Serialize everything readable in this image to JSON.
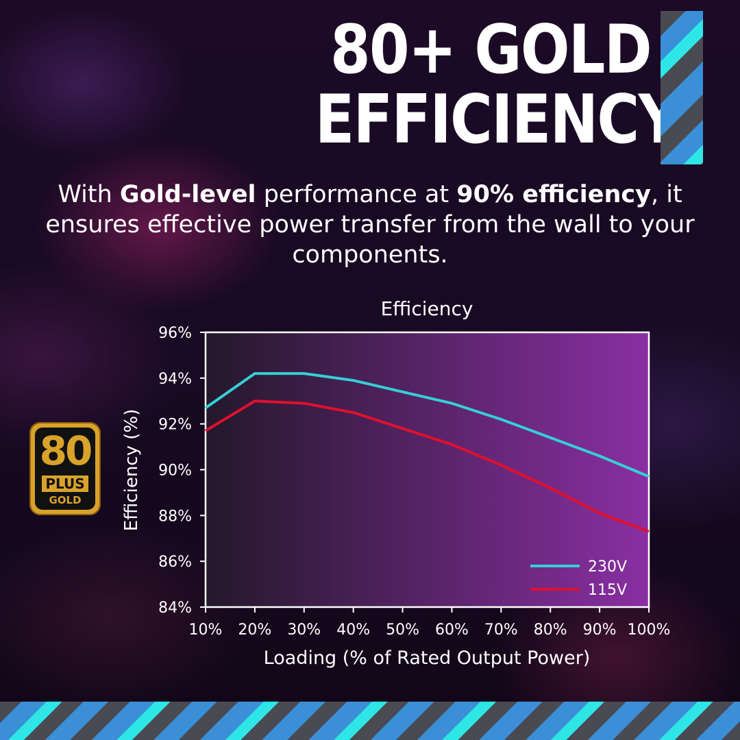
{
  "headline": {
    "line1": "80+ GOLD",
    "line2": "EFFICIENCY"
  },
  "intro": {
    "p1": "With ",
    "b1": "Gold-level",
    "p2": " performance at ",
    "b2": "90% efficiency",
    "p3": ", it ensures effective power transfer from the wall to your components."
  },
  "badge": {
    "number": "80",
    "plus": "PLUS",
    "level": "GOLD"
  },
  "colors": {
    "series_230": "#35cfd6",
    "series_115": "#e0102e",
    "plot_left": "#24182b",
    "plot_right": "#8a2fa3",
    "stripe_blue": "#3a8fd6",
    "stripe_cyan": "#2ee6e6",
    "stripe_gray": "#4a4a52"
  },
  "chart_data": {
    "type": "line",
    "title": "Efficiency",
    "xlabel": "Loading (% of Rated Output Power)",
    "ylabel": "Efficiency (%)",
    "x": [
      10,
      20,
      30,
      40,
      50,
      60,
      70,
      80,
      90,
      100
    ],
    "x_tick_labels": [
      "10%",
      "20%",
      "30%",
      "40%",
      "50%",
      "60%",
      "70%",
      "80%",
      "90%",
      "100%"
    ],
    "y_ticks": [
      84,
      86,
      88,
      90,
      92,
      94,
      96
    ],
    "y_tick_labels": [
      "84%",
      "86%",
      "88%",
      "90%",
      "92%",
      "94%",
      "96%"
    ],
    "xlim": [
      10,
      100
    ],
    "ylim": [
      84,
      96
    ],
    "grid": false,
    "legend_position": "bottom-right",
    "series": [
      {
        "name": "230V",
        "values": [
          92.7,
          94.2,
          94.2,
          93.9,
          93.4,
          92.9,
          92.2,
          91.4,
          90.6,
          89.7
        ]
      },
      {
        "name": "115V",
        "values": [
          91.7,
          93.0,
          92.9,
          92.5,
          91.8,
          91.1,
          90.2,
          89.2,
          88.1,
          87.3
        ]
      }
    ]
  }
}
